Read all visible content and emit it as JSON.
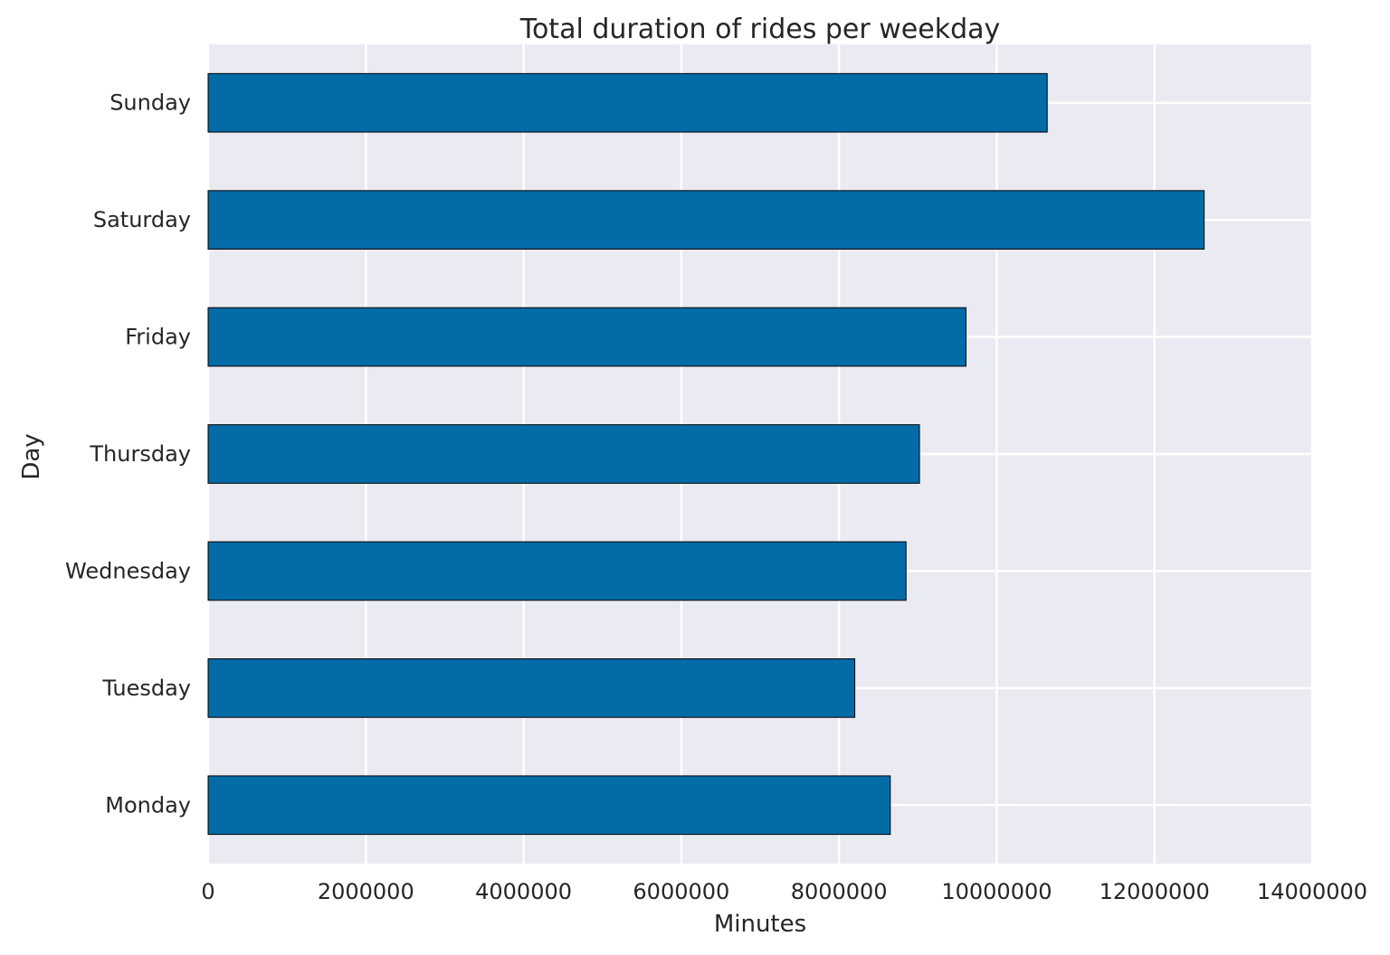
{
  "chart_data": {
    "type": "bar",
    "orientation": "horizontal",
    "title": "Total duration of rides per weekday",
    "xlabel": "Minutes",
    "ylabel": "Day",
    "categories": [
      "Monday",
      "Tuesday",
      "Wednesday",
      "Thursday",
      "Friday",
      "Saturday",
      "Sunday"
    ],
    "values": [
      8650000,
      8200000,
      8850000,
      9020000,
      9610000,
      12630000,
      10640000
    ],
    "xlim": [
      0,
      14000000
    ],
    "x_ticks": [
      0,
      2000000,
      4000000,
      6000000,
      8000000,
      10000000,
      12000000,
      14000000
    ],
    "x_tick_labels": [
      "0",
      "2000000",
      "4000000",
      "6000000",
      "8000000",
      "10000000",
      "12000000",
      "14000000"
    ],
    "grid": true,
    "colors": {
      "bar": "#036ba6",
      "background": "#eaeaf2",
      "grid": "#ffffff"
    }
  }
}
